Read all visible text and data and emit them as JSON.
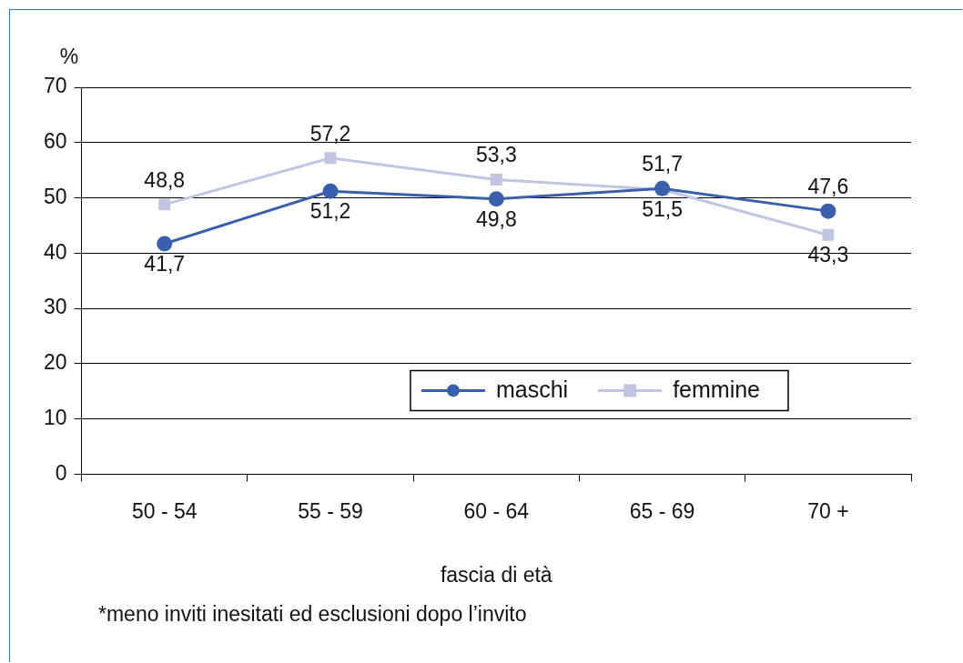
{
  "chart_data": {
    "type": "line",
    "ylabel": "%",
    "xlabel": "fascia di età",
    "categories": [
      "50 - 54",
      "55 - 59",
      "60 - 64",
      "65 - 69",
      "70 +"
    ],
    "series": [
      {
        "name": "maschi",
        "color": "#3a5fad",
        "marker": "circle",
        "values": [
          41.7,
          51.2,
          49.8,
          51.7,
          47.6
        ],
        "value_labels": [
          "41,7",
          "51,2",
          "49,8",
          "51,7",
          "47,6"
        ]
      },
      {
        "name": "femmine",
        "color": "#c0c6e2",
        "marker": "square",
        "values": [
          48.8,
          57.2,
          53.3,
          51.5,
          43.3
        ],
        "value_labels": [
          "48,8",
          "57,2",
          "53,3",
          "51,5",
          "43,3"
        ]
      }
    ],
    "ylim": [
      0,
      70
    ],
    "yticks": [
      0,
      10,
      20,
      30,
      40,
      50,
      60,
      70
    ],
    "grid": "y",
    "legend": "bottom right",
    "line_style": "solid",
    "annotations": [
      "*meno inviti inesitati ed esclusioni dopo l’invito"
    ]
  }
}
